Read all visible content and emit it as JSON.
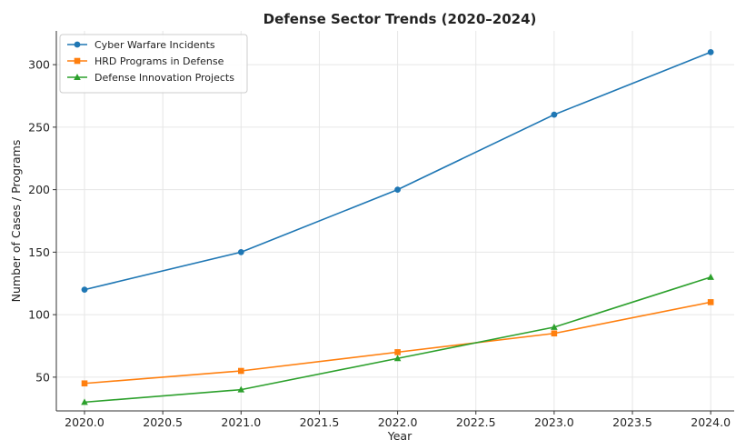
{
  "chart_data": {
    "type": "line",
    "title": "Defense Sector Trends (2020–2024)",
    "xlabel": "Year",
    "ylabel": "Number of Cases / Programs",
    "x": [
      2020,
      2021,
      2022,
      2023,
      2024
    ],
    "x_ticks": [
      "2020.0",
      "2020.5",
      "2021.0",
      "2021.5",
      "2022.0",
      "2022.5",
      "2023.0",
      "2023.5",
      "2024.0"
    ],
    "y_ticks": [
      "50",
      "100",
      "150",
      "200",
      "250",
      "300"
    ],
    "xlim": [
      2019.82,
      2024.15
    ],
    "ylim": [
      23,
      327
    ],
    "grid": true,
    "legend_position": "top-left",
    "series": [
      {
        "name": "Cyber Warfare Incidents",
        "values": [
          120,
          150,
          200,
          260,
          310
        ],
        "color": "#1f77b4",
        "marker": "circle"
      },
      {
        "name": "HRD Programs in Defense",
        "values": [
          45,
          55,
          70,
          85,
          110
        ],
        "color": "#ff7f0e",
        "marker": "square"
      },
      {
        "name": "Defense Innovation Projects",
        "values": [
          30,
          40,
          65,
          90,
          130
        ],
        "color": "#2ca02c",
        "marker": "triangle"
      }
    ]
  }
}
